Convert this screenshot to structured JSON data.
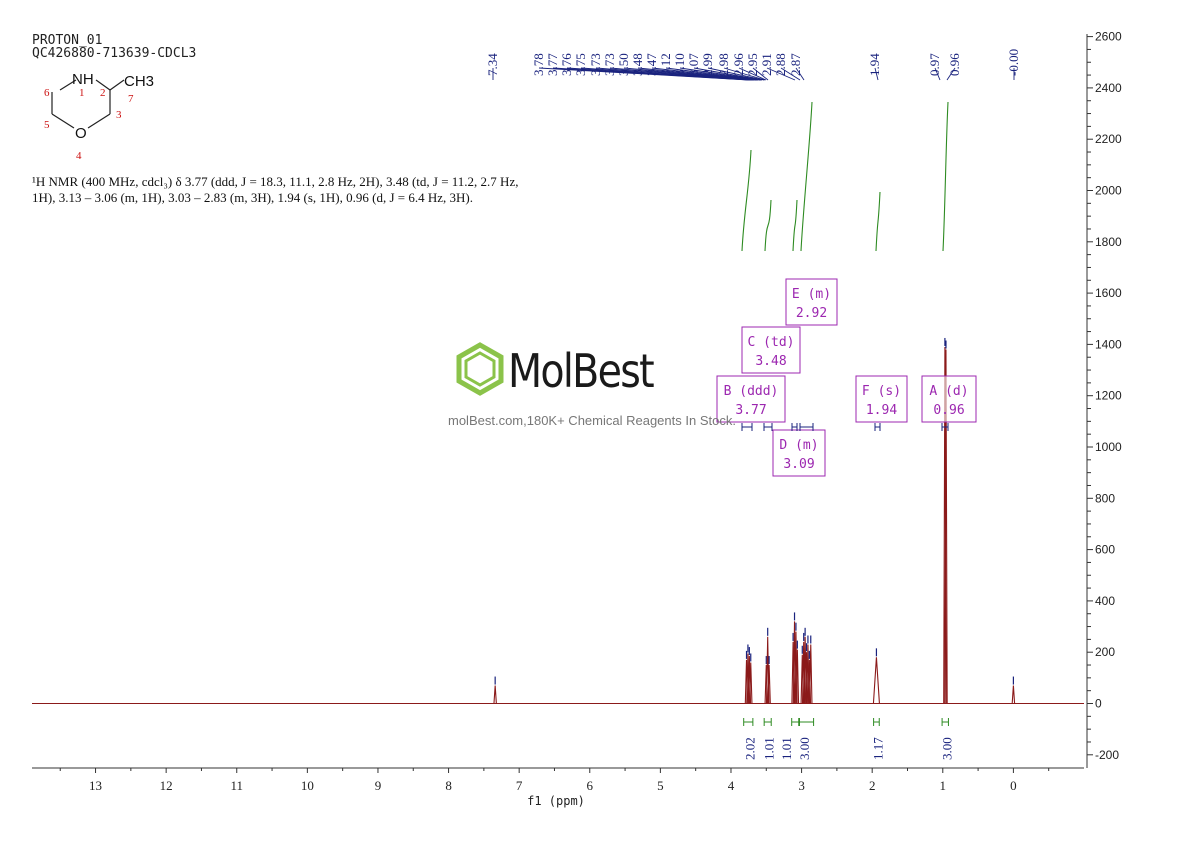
{
  "header": {
    "line1": "PROTON_01",
    "line2": "QC426880-713639-CDCL3"
  },
  "nmr_description": {
    "line1": "¹H NMR (400 MHz, cdcl₃) δ 3.77 (ddd, J = 18.3, 11.1, 2.8 Hz, 2H), 3.48 (td, J = 11.2, 2.7 Hz,",
    "line2": "1H), 3.13 – 3.06 (m, 1H), 3.03 – 2.83 (m, 3H), 1.94 (s, 1H), 0.96 (d, J = 6.4 Hz, 3H)."
  },
  "molecule": {
    "atoms": [
      "NH",
      "CH3",
      "O"
    ],
    "numbers": [
      "1",
      "2",
      "3",
      "4",
      "5",
      "6",
      "7"
    ]
  },
  "watermark": {
    "logo": "MolBest",
    "tagline": "molBest.com,180K+ Chemical Reagents In Stock."
  },
  "colors": {
    "spectrum": "#8b1a1a",
    "peak_labels": "#1a237e",
    "integral": "#2e8b22",
    "multiplet": "#9c27b0",
    "axis": "#333333"
  },
  "chart_data": {
    "type": "line",
    "xlabel": "f1 (ppm)",
    "x_ticks": [
      "13",
      "12",
      "11",
      "10",
      "9",
      "8",
      "7",
      "6",
      "5",
      "4",
      "3",
      "2",
      "1",
      "0"
    ],
    "xlim": [
      13.9,
      -1.0
    ],
    "y_ticks": [
      "2600",
      "2400",
      "2200",
      "2000",
      "1800",
      "1600",
      "1400",
      "1200",
      "1000",
      "800",
      "600",
      "400",
      "200",
      "0",
      "-200"
    ],
    "ylim": [
      -250,
      2620
    ],
    "peak_labels": [
      "7.34",
      "3.78",
      "3.77",
      "3.76",
      "3.75",
      "3.73",
      "3.73",
      "3.50",
      "3.48",
      "3.47",
      "3.12",
      "3.10",
      "3.07",
      "2.99",
      "2.98",
      "2.96",
      "2.95",
      "2.91",
      "2.88",
      "2.87",
      "1.94",
      "0.97",
      "0.96",
      "-0.00"
    ],
    "peaks": [
      {
        "ppm": 7.34,
        "height": 70
      },
      {
        "ppm": 3.78,
        "height": 170
      },
      {
        "ppm": 3.76,
        "height": 195
      },
      {
        "ppm": 3.74,
        "height": 185
      },
      {
        "ppm": 3.72,
        "height": 160
      },
      {
        "ppm": 3.5,
        "height": 150
      },
      {
        "ppm": 3.48,
        "height": 260
      },
      {
        "ppm": 3.46,
        "height": 150
      },
      {
        "ppm": 3.12,
        "height": 240
      },
      {
        "ppm": 3.1,
        "height": 320
      },
      {
        "ppm": 3.08,
        "height": 280
      },
      {
        "ppm": 3.06,
        "height": 210
      },
      {
        "ppm": 2.99,
        "height": 190
      },
      {
        "ppm": 2.97,
        "height": 240
      },
      {
        "ppm": 2.95,
        "height": 260
      },
      {
        "ppm": 2.93,
        "height": 200
      },
      {
        "ppm": 2.91,
        "height": 230
      },
      {
        "ppm": 2.89,
        "height": 170
      },
      {
        "ppm": 2.87,
        "height": 230
      },
      {
        "ppm": 1.94,
        "height": 180
      },
      {
        "ppm": 0.97,
        "height": 1390
      },
      {
        "ppm": 0.955,
        "height": 1380
      },
      {
        "ppm": 0.0,
        "height": 70
      }
    ],
    "integrals": [
      {
        "from": 3.82,
        "to": 3.69,
        "value": "2.02"
      },
      {
        "from": 3.53,
        "to": 3.43,
        "value": "1.01"
      },
      {
        "from": 3.14,
        "to": 3.04,
        "value": "1.01"
      },
      {
        "from": 3.03,
        "to": 2.83,
        "value": "3.00"
      },
      {
        "from": 1.98,
        "to": 1.9,
        "value": "1.17"
      },
      {
        "from": 1.01,
        "to": 0.92,
        "value": "3.00"
      }
    ],
    "multiplets": [
      {
        "letter": "E",
        "type": "(m)",
        "shift": "2.92",
        "ppm": 2.92
      },
      {
        "letter": "C",
        "type": "(td)",
        "shift": "3.48",
        "ppm": 3.48
      },
      {
        "letter": "B",
        "type": "(ddd)",
        "shift": "3.77",
        "ppm": 3.77
      },
      {
        "letter": "F",
        "type": "(s)",
        "shift": "1.94",
        "ppm": 1.94
      },
      {
        "letter": "A",
        "type": "(d)",
        "shift": "0.96",
        "ppm": 0.96
      },
      {
        "letter": "D",
        "type": "(m)",
        "shift": "3.09",
        "ppm": 3.09
      }
    ]
  }
}
